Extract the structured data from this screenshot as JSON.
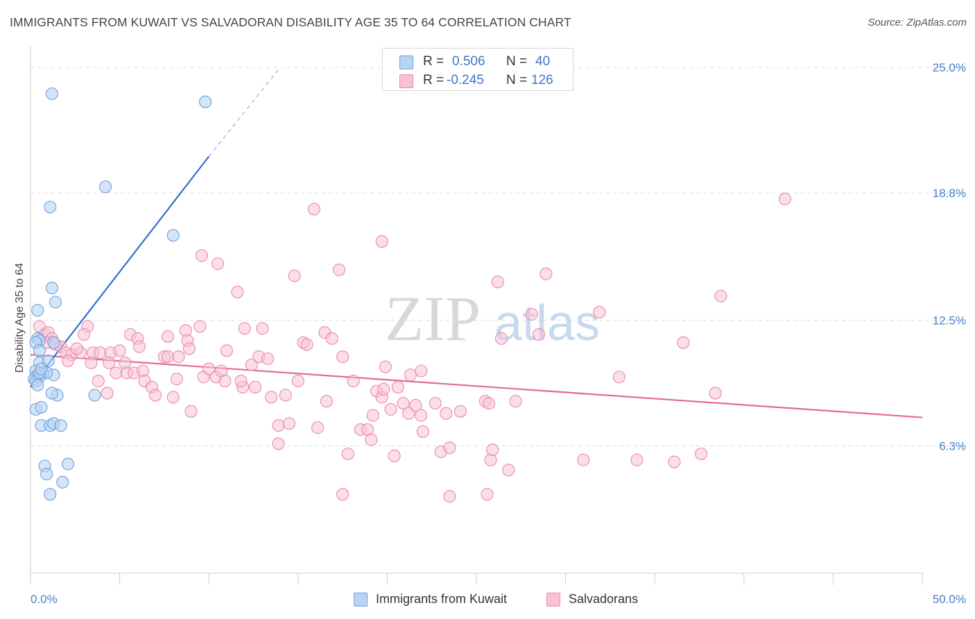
{
  "header": {
    "title": "IMMIGRANTS FROM KUWAIT VS SALVADORAN DISABILITY AGE 35 TO 64 CORRELATION CHART",
    "source": "Source: ZipAtlas.com"
  },
  "watermark": {
    "zip": "ZIP",
    "atlas": "atlas"
  },
  "legend": {
    "rows": [
      {
        "r_label": "R =",
        "r_value": "0.506",
        "n_label": "N =",
        "n_value": "40"
      },
      {
        "r_label": "R =",
        "r_value": "-0.245",
        "n_label": "N =",
        "n_value": "126"
      }
    ]
  },
  "bottom_legend": {
    "series1": "Immigrants from Kuwait",
    "series2": "Salvadorans"
  },
  "colors": {
    "blue_fill": "#b8d3f4",
    "blue_stroke": "#6d9ee0",
    "blue_line": "#2f6fcf",
    "pink_fill": "#f7c3d3",
    "pink_stroke": "#e88aaa",
    "pink_line": "#e06a95",
    "tick_label": "#4a7fc8",
    "grid": "#dddddd"
  },
  "chart_data": {
    "type": "scatter",
    "title": "IMMIGRANTS FROM KUWAIT VS SALVADORAN DISABILITY AGE 35 TO 64 CORRELATION CHART",
    "xlabel": "",
    "ylabel": "Disability Age 35 to 64",
    "xlim": [
      0,
      50
    ],
    "ylim": [
      0,
      25.9
    ],
    "x_tick_labels": [
      "0.0%",
      "50.0%"
    ],
    "y_ticks": [
      6.3,
      12.5,
      18.8,
      25.0
    ],
    "y_tick_labels": [
      "6.3%",
      "12.5%",
      "18.8%",
      "25.0%"
    ],
    "grid": true,
    "legend_position": "top-center",
    "series": [
      {
        "name": "Immigrants from Kuwait",
        "color": "#6d9ee0",
        "R": 0.506,
        "N": 40,
        "trend": {
          "x": [
            0.0,
            10.0
          ],
          "y": [
            9.2,
            20.6
          ],
          "dashed_to": [
            14.0,
            25.0
          ]
        },
        "points": [
          [
            1.2,
            23.7
          ],
          [
            9.8,
            23.3
          ],
          [
            4.2,
            19.1
          ],
          [
            1.1,
            18.1
          ],
          [
            8.0,
            16.7
          ],
          [
            1.2,
            14.1
          ],
          [
            1.4,
            13.4
          ],
          [
            0.4,
            13.0
          ],
          [
            0.4,
            11.6
          ],
          [
            0.5,
            11.5
          ],
          [
            0.3,
            11.4
          ],
          [
            1.3,
            11.4
          ],
          [
            0.5,
            11.0
          ],
          [
            0.5,
            10.4
          ],
          [
            1.0,
            10.5
          ],
          [
            0.3,
            10.0
          ],
          [
            0.7,
            9.9
          ],
          [
            0.4,
            9.8
          ],
          [
            1.3,
            9.8
          ],
          [
            0.9,
            9.9
          ],
          [
            0.2,
            9.6
          ],
          [
            0.5,
            9.7
          ],
          [
            0.3,
            9.5
          ],
          [
            0.4,
            9.3
          ],
          [
            1.5,
            8.8
          ],
          [
            1.2,
            8.9
          ],
          [
            3.6,
            8.8
          ],
          [
            0.3,
            8.1
          ],
          [
            0.6,
            8.2
          ],
          [
            0.6,
            7.3
          ],
          [
            1.1,
            7.3
          ],
          [
            1.3,
            7.4
          ],
          [
            1.7,
            7.3
          ],
          [
            0.8,
            5.3
          ],
          [
            2.1,
            5.4
          ],
          [
            0.9,
            4.9
          ],
          [
            1.8,
            4.5
          ],
          [
            1.1,
            3.9
          ],
          [
            0.5,
            9.9
          ],
          [
            0.6,
            10.1
          ]
        ]
      },
      {
        "name": "Salvadorans",
        "color": "#e88aaa",
        "R": -0.245,
        "N": 126,
        "trend": {
          "x": [
            0.0,
            50.0
          ],
          "y": [
            10.8,
            7.7
          ]
        },
        "points": [
          [
            0.5,
            12.2
          ],
          [
            0.8,
            11.8
          ],
          [
            1.0,
            11.9
          ],
          [
            1.2,
            11.6
          ],
          [
            0.9,
            11.4
          ],
          [
            1.4,
            11.3
          ],
          [
            1.7,
            11.2
          ],
          [
            2.0,
            10.9
          ],
          [
            2.3,
            10.8
          ],
          [
            2.1,
            10.5
          ],
          [
            2.8,
            10.9
          ],
          [
            3.2,
            12.2
          ],
          [
            3.0,
            11.8
          ],
          [
            2.6,
            11.1
          ],
          [
            3.5,
            10.9
          ],
          [
            3.9,
            10.9
          ],
          [
            4.5,
            10.9
          ],
          [
            5.0,
            11.0
          ],
          [
            4.4,
            10.4
          ],
          [
            5.3,
            10.4
          ],
          [
            3.4,
            10.4
          ],
          [
            4.8,
            9.9
          ],
          [
            5.4,
            9.9
          ],
          [
            5.8,
            9.9
          ],
          [
            6.3,
            10.0
          ],
          [
            6.4,
            9.5
          ],
          [
            3.8,
            9.5
          ],
          [
            4.3,
            8.9
          ],
          [
            5.6,
            11.8
          ],
          [
            6.0,
            11.6
          ],
          [
            6.1,
            11.2
          ],
          [
            6.8,
            9.2
          ],
          [
            7.0,
            8.8
          ],
          [
            7.5,
            10.7
          ],
          [
            7.7,
            10.7
          ],
          [
            7.7,
            11.7
          ],
          [
            8.2,
            9.6
          ],
          [
            8.0,
            8.7
          ],
          [
            8.3,
            10.7
          ],
          [
            8.7,
            12.0
          ],
          [
            8.8,
            11.5
          ],
          [
            8.9,
            11.1
          ],
          [
            9.5,
            12.2
          ],
          [
            9.0,
            8.0
          ],
          [
            9.7,
            9.7
          ],
          [
            10.0,
            10.1
          ],
          [
            10.4,
            9.7
          ],
          [
            10.5,
            15.3
          ],
          [
            9.6,
            15.7
          ],
          [
            10.7,
            10.0
          ],
          [
            10.9,
            9.5
          ],
          [
            11.0,
            11.0
          ],
          [
            11.6,
            13.9
          ],
          [
            11.9,
            9.2
          ],
          [
            11.8,
            9.5
          ],
          [
            12.0,
            12.1
          ],
          [
            12.4,
            10.3
          ],
          [
            12.6,
            9.2
          ],
          [
            12.8,
            10.7
          ],
          [
            13.0,
            12.1
          ],
          [
            13.3,
            10.6
          ],
          [
            13.5,
            8.7
          ],
          [
            13.9,
            6.4
          ],
          [
            13.9,
            7.3
          ],
          [
            14.3,
            8.8
          ],
          [
            14.5,
            7.4
          ],
          [
            14.8,
            14.7
          ],
          [
            15.0,
            9.5
          ],
          [
            15.3,
            11.4
          ],
          [
            15.5,
            11.3
          ],
          [
            15.9,
            18.0
          ],
          [
            16.1,
            7.2
          ],
          [
            16.5,
            11.9
          ],
          [
            16.6,
            8.5
          ],
          [
            16.9,
            11.6
          ],
          [
            17.3,
            15.0
          ],
          [
            17.5,
            10.7
          ],
          [
            17.5,
            3.9
          ],
          [
            17.8,
            5.9
          ],
          [
            18.1,
            9.5
          ],
          [
            18.5,
            7.1
          ],
          [
            18.9,
            7.1
          ],
          [
            19.1,
            6.6
          ],
          [
            19.2,
            7.8
          ],
          [
            19.4,
            9.0
          ],
          [
            19.7,
            8.7
          ],
          [
            19.8,
            9.1
          ],
          [
            19.9,
            10.2
          ],
          [
            19.7,
            16.4
          ],
          [
            20.2,
            8.1
          ],
          [
            20.4,
            5.8
          ],
          [
            20.6,
            9.2
          ],
          [
            20.9,
            8.4
          ],
          [
            21.2,
            7.9
          ],
          [
            21.6,
            8.3
          ],
          [
            21.3,
            9.8
          ],
          [
            21.9,
            10.0
          ],
          [
            22.0,
            7.0
          ],
          [
            21.9,
            7.8
          ],
          [
            22.7,
            8.4
          ],
          [
            23.0,
            6.0
          ],
          [
            23.3,
            7.9
          ],
          [
            23.5,
            6.2
          ],
          [
            23.5,
            3.8
          ],
          [
            24.1,
            8.0
          ],
          [
            25.5,
            8.5
          ],
          [
            25.7,
            8.4
          ],
          [
            25.6,
            3.9
          ],
          [
            25.8,
            5.6
          ],
          [
            25.9,
            6.1
          ],
          [
            26.4,
            11.6
          ],
          [
            26.2,
            14.4
          ],
          [
            26.8,
            5.1
          ],
          [
            27.2,
            8.5
          ],
          [
            28.1,
            12.8
          ],
          [
            28.5,
            11.8
          ],
          [
            28.9,
            14.8
          ],
          [
            31.0,
            5.6
          ],
          [
            31.9,
            12.9
          ],
          [
            33.0,
            9.7
          ],
          [
            34.0,
            5.6
          ],
          [
            36.1,
            5.5
          ],
          [
            36.6,
            11.4
          ],
          [
            37.6,
            5.9
          ],
          [
            38.7,
            13.7
          ],
          [
            38.4,
            8.9
          ],
          [
            42.3,
            18.5
          ]
        ]
      }
    ]
  }
}
